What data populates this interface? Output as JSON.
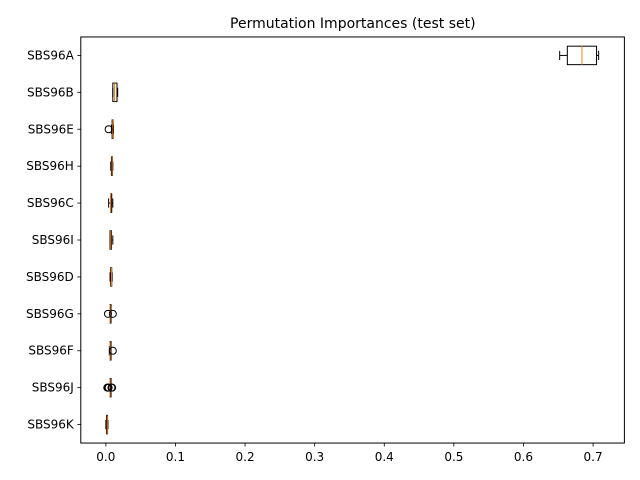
{
  "chart_data": {
    "type": "boxplot",
    "orientation": "horizontal",
    "title": "Permutation Importances (test set)",
    "xlabel": "",
    "ylabel": "",
    "xlim": [
      -0.036,
      0.745
    ],
    "xticks": [
      "0.0",
      "0.1",
      "0.2",
      "0.3",
      "0.4",
      "0.5",
      "0.6",
      "0.7"
    ],
    "xtick_values": [
      0.0,
      0.1,
      0.2,
      0.3,
      0.4,
      0.5,
      0.6,
      0.7
    ],
    "grid": false,
    "colors": {
      "box": "#000000",
      "median": "#ff7f0e"
    },
    "categories": [
      "SBS96A",
      "SBS96B",
      "SBS96E",
      "SBS96H",
      "SBS96C",
      "SBS96I",
      "SBS96D",
      "SBS96G",
      "SBS96F",
      "SBS96J",
      "SBS96K"
    ],
    "boxes": [
      {
        "label": "SBS96A",
        "whislo": 0.652,
        "q1": 0.663,
        "med": 0.684,
        "q3": 0.705,
        "whishi": 0.708,
        "fliers": []
      },
      {
        "label": "SBS96B",
        "whislo": 0.01,
        "q1": 0.01,
        "med": 0.0125,
        "q3": 0.016,
        "whishi": 0.017,
        "fliers": []
      },
      {
        "label": "SBS96E",
        "whislo": 0.008,
        "q1": 0.009,
        "med": 0.01,
        "q3": 0.01,
        "whishi": 0.011,
        "fliers": [
          0.004
        ]
      },
      {
        "label": "SBS96H",
        "whislo": 0.007,
        "q1": 0.008,
        "med": 0.009,
        "q3": 0.009,
        "whishi": 0.01,
        "fliers": []
      },
      {
        "label": "SBS96C",
        "whislo": 0.004,
        "q1": 0.007,
        "med": 0.007,
        "q3": 0.008,
        "whishi": 0.01,
        "fliers": []
      },
      {
        "label": "SBS96I",
        "whislo": 0.006,
        "q1": 0.006,
        "med": 0.007,
        "q3": 0.008,
        "whishi": 0.01,
        "fliers": []
      },
      {
        "label": "SBS96D",
        "whislo": 0.006,
        "q1": 0.007,
        "med": 0.008,
        "q3": 0.008,
        "whishi": 0.009,
        "fliers": []
      },
      {
        "label": "SBS96G",
        "whislo": 0.006,
        "q1": 0.006,
        "med": 0.006,
        "q3": 0.007,
        "whishi": 0.007,
        "fliers": [
          0.003,
          0.01
        ]
      },
      {
        "label": "SBS96F",
        "whislo": 0.005,
        "q1": 0.006,
        "med": 0.006,
        "q3": 0.007,
        "whishi": 0.007,
        "fliers": [
          0.01
        ]
      },
      {
        "label": "SBS96J",
        "whislo": 0.006,
        "q1": 0.006,
        "med": 0.006,
        "q3": 0.006,
        "whishi": 0.006,
        "fliers": [
          0.002,
          0.003,
          0.004,
          0.008,
          0.009
        ]
      },
      {
        "label": "SBS96K",
        "whislo": 0.0,
        "q1": 0.001,
        "med": 0.002,
        "q3": 0.002,
        "whishi": 0.003,
        "fliers": []
      }
    ]
  }
}
